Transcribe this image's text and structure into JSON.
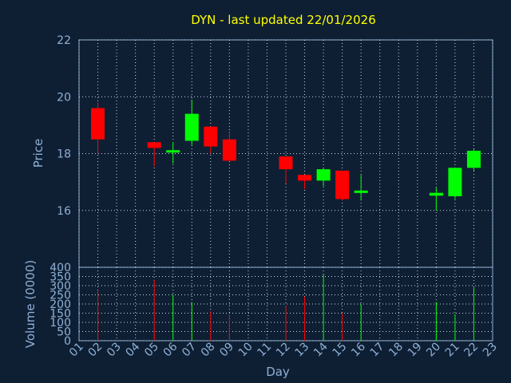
{
  "chart_data": {
    "type": "candlestick",
    "title": "DYN - last updated 22/01/2026",
    "xlabel": "Day",
    "ylabel": "Price",
    "volume_label": "Volume (0000)",
    "x_ticks": [
      "01",
      "02",
      "03",
      "04",
      "05",
      "06",
      "07",
      "08",
      "09",
      "10",
      "11",
      "12",
      "13",
      "14",
      "15",
      "16",
      "17",
      "18",
      "19",
      "20",
      "21",
      "22",
      "23"
    ],
    "price_ticks": [
      "16",
      "18",
      "20",
      "22"
    ],
    "ylim": [
      14.0,
      22.0
    ],
    "volume_ticks": [
      "0",
      "50",
      "100",
      "150",
      "200",
      "250",
      "300",
      "350",
      "400"
    ],
    "volume_ylim": [
      0,
      400
    ],
    "grid": true,
    "up_color": "#00ff00",
    "down_color": "#ff0000",
    "candles": [
      {
        "day": 2,
        "open": 19.6,
        "high": 19.8,
        "low": 18.0,
        "close": 18.5,
        "volume": 270
      },
      {
        "day": 5,
        "open": 18.4,
        "high": 18.4,
        "low": 17.55,
        "close": 18.2,
        "volume": 330
      },
      {
        "day": 6,
        "open": 18.05,
        "high": 18.4,
        "low": 17.65,
        "close": 18.12,
        "volume": 250
      },
      {
        "day": 7,
        "open": 18.45,
        "high": 19.9,
        "low": 18.3,
        "close": 19.4,
        "volume": 210
      },
      {
        "day": 8,
        "open": 18.95,
        "high": 18.95,
        "low": 18.0,
        "close": 18.25,
        "volume": 160
      },
      {
        "day": 9,
        "open": 18.5,
        "high": 18.8,
        "low": 17.75,
        "close": 17.75,
        "volume": 140
      },
      {
        "day": 12,
        "open": 17.9,
        "high": 17.9,
        "low": 16.95,
        "close": 17.45,
        "volume": 190
      },
      {
        "day": 13,
        "open": 17.25,
        "high": 17.25,
        "low": 16.75,
        "close": 17.05,
        "volume": 240
      },
      {
        "day": 14,
        "open": 17.05,
        "high": 17.5,
        "low": 16.85,
        "close": 17.45,
        "volume": 360
      },
      {
        "day": 15,
        "open": 17.4,
        "high": 17.4,
        "low": 16.35,
        "close": 16.4,
        "volume": 150
      },
      {
        "day": 16,
        "open": 16.65,
        "high": 17.25,
        "low": 16.35,
        "close": 16.7,
        "volume": 200
      },
      {
        "day": 20,
        "open": 16.52,
        "high": 16.8,
        "low": 16.0,
        "close": 16.62,
        "volume": 210
      },
      {
        "day": 21,
        "open": 16.5,
        "high": 17.5,
        "low": 16.4,
        "close": 17.5,
        "volume": 145
      },
      {
        "day": 22,
        "open": 17.5,
        "high": 18.15,
        "low": 17.4,
        "close": 18.1,
        "volume": 290
      }
    ]
  }
}
